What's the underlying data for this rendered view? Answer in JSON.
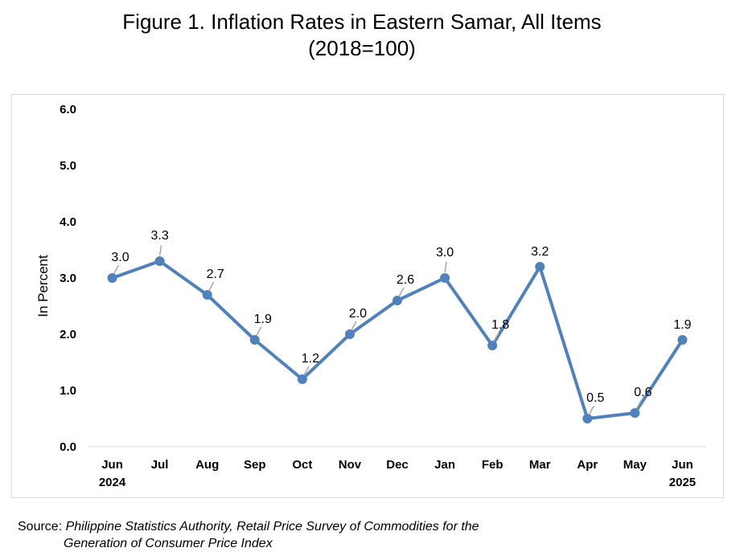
{
  "title_line1": "Figure 1. Inflation Rates in Eastern Samar, All Items",
  "title_line2": "(2018=100)",
  "source": {
    "label": "Source:",
    "line1": "Philippine Statistics Authority, Retail Price Survey of Commodities for the",
    "line2": "Generation of Consumer Price Index"
  },
  "chart_data": {
    "type": "line",
    "categories": [
      "Jun",
      "Jul",
      "Aug",
      "Sep",
      "Oct",
      "Nov",
      "Dec",
      "Jan",
      "Feb",
      "Mar",
      "Apr",
      "May",
      "Jun"
    ],
    "category_sublabels": [
      "2024",
      "",
      "",
      "",
      "",
      "",
      "",
      "",
      "",
      "",
      "",
      "",
      "2025"
    ],
    "values": [
      3.0,
      3.3,
      2.7,
      1.9,
      1.2,
      2.0,
      2.6,
      3.0,
      1.8,
      3.2,
      0.5,
      0.6,
      1.9
    ],
    "data_labels": [
      "3.0",
      "3.3",
      "2.7",
      "1.9",
      "1.2",
      "2.0",
      "2.6",
      "3.0",
      "1.8",
      "3.2",
      "0.5",
      "0.6",
      "1.9"
    ],
    "ylabel": "In Percent",
    "xlabel": "",
    "ylim": [
      0,
      6
    ],
    "yticks": [
      "0.0",
      "1.0",
      "2.0",
      "3.0",
      "4.0",
      "5.0",
      "6.0"
    ],
    "grid": false,
    "legend": "none",
    "line_color": "#4f81bd"
  }
}
